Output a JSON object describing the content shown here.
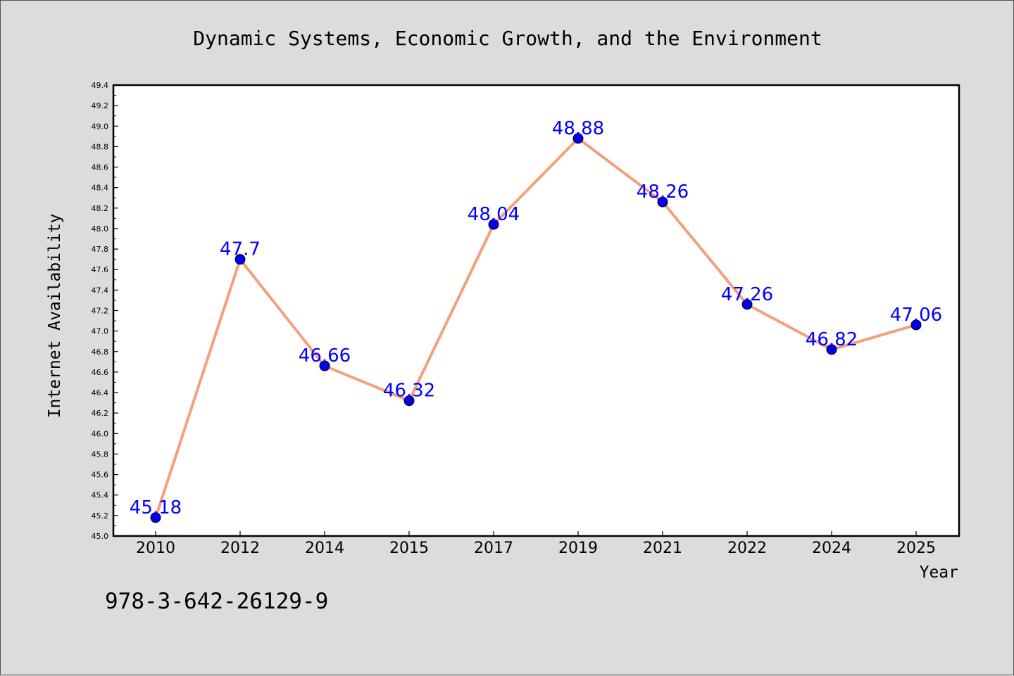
{
  "chart_data": {
    "type": "line",
    "title": "Dynamic Systems, Economic Growth, and the Environment",
    "xlabel": "Year",
    "ylabel": "Internet Availability",
    "categories": [
      "2010",
      "2012",
      "2014",
      "2015",
      "2017",
      "2019",
      "2021",
      "2022",
      "2024",
      "2025"
    ],
    "series": [
      {
        "values": [
          45.18,
          47.7,
          46.66,
          46.32,
          48.04,
          48.88,
          48.26,
          47.26,
          46.82,
          47.06
        ],
        "labels": [
          "45.18",
          "47.7",
          "46.66",
          "46.32",
          "48.04",
          "48.88",
          "48.26",
          "47.26",
          "46.82",
          "47.06"
        ]
      }
    ],
    "ylim": [
      45.0,
      49.4
    ],
    "yticks": [
      "45.0",
      "45.2",
      "45.4",
      "45.6",
      "45.8",
      "46.0",
      "46.2",
      "46.4",
      "46.6",
      "46.8",
      "47.0",
      "47.2",
      "47.4",
      "47.6",
      "47.8",
      "48.0",
      "48.2",
      "48.4",
      "48.6",
      "48.8",
      "49.0",
      "49.2",
      "49.4"
    ],
    "grid": false,
    "colors": {
      "line": "#f4a07c",
      "marker": "#0000ee",
      "label": "#0000ff",
      "plot_bg": "#ffffff",
      "figure_bg": "#dcdcdc"
    }
  },
  "footer": {
    "isbn": "978-3-642-26129-9"
  }
}
